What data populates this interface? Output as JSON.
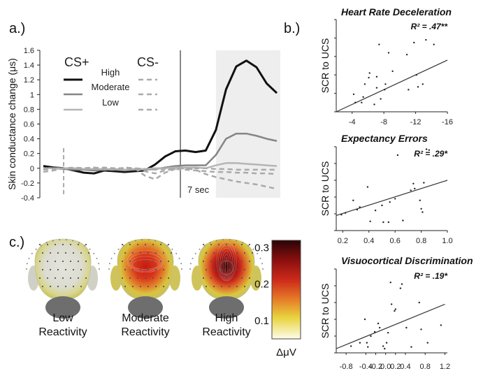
{
  "labels": {
    "a": "a.)",
    "b": "b.)",
    "c": "c.)"
  },
  "chart_data": [
    {
      "type": "line",
      "title": "",
      "ylabel": "Skin conductance change (μs)",
      "xlabel": "",
      "ylim": [
        -0.4,
        1.6
      ],
      "yticks": [
        "1.6",
        "1.4",
        "1.2",
        "1",
        "0.8",
        "0.6",
        "0.4",
        "0.2",
        "0",
        "-0.2",
        "-0.4"
      ],
      "x": [
        0,
        1,
        2,
        3,
        4,
        5,
        6,
        7,
        8,
        9,
        10,
        11,
        12,
        13,
        14,
        15,
        16,
        17,
        18,
        19,
        20,
        21,
        22,
        23
      ],
      "onset_index": 2,
      "marker_index": 13.5,
      "marker_label": "7 sec",
      "shade_from_index": 17,
      "legend": {
        "cs_plus": "CS+",
        "cs_minus": "CS-",
        "high": "High",
        "moderate": "Moderate",
        "low": "Low"
      },
      "series": [
        {
          "name": "CS+ High",
          "color": "#111111",
          "dash": "",
          "values": [
            0.03,
            0.01,
            0.0,
            -0.03,
            -0.06,
            -0.07,
            -0.03,
            -0.04,
            -0.05,
            -0.04,
            -0.03,
            0.05,
            0.16,
            0.23,
            0.24,
            0.22,
            0.24,
            0.52,
            1.07,
            1.38,
            1.46,
            1.37,
            1.15,
            1.02
          ]
        },
        {
          "name": "CS+ Moderate",
          "color": "#858585",
          "dash": "",
          "values": [
            0.0,
            0.0,
            -0.01,
            -0.02,
            -0.02,
            -0.03,
            -0.02,
            -0.02,
            -0.03,
            -0.02,
            -0.02,
            -0.01,
            0.01,
            0.03,
            0.04,
            0.04,
            0.04,
            0.18,
            0.4,
            0.47,
            0.47,
            0.44,
            0.4,
            0.37
          ]
        },
        {
          "name": "CS+ Low",
          "color": "#b5b5b5",
          "dash": "",
          "values": [
            0.0,
            0.0,
            0.0,
            0.0,
            -0.01,
            -0.01,
            -0.01,
            -0.01,
            -0.02,
            -0.01,
            -0.01,
            0.0,
            0.0,
            0.01,
            0.01,
            0.01,
            0.0,
            0.04,
            0.07,
            0.07,
            0.06,
            0.05,
            0.04,
            0.03
          ]
        },
        {
          "name": "CS- High",
          "color": "#aaaaaa",
          "dash": "7,5",
          "values": [
            -0.05,
            -0.03,
            0.0,
            0.01,
            0.0,
            0.01,
            -0.02,
            -0.02,
            0.01,
            0.0,
            -0.1,
            -0.15,
            -0.06,
            -0.01,
            0.0,
            -0.02,
            -0.08,
            -0.12,
            -0.15,
            -0.18,
            -0.2,
            -0.22,
            -0.25,
            -0.28
          ]
        },
        {
          "name": "CS- Moderate",
          "color": "#aaaaaa",
          "dash": "7,5",
          "values": [
            -0.02,
            -0.01,
            0.0,
            0.0,
            0.0,
            0.01,
            0.0,
            -0.01,
            0.0,
            -0.01,
            -0.04,
            -0.07,
            -0.03,
            -0.01,
            -0.02,
            -0.03,
            -0.04,
            -0.05,
            -0.05,
            -0.06,
            -0.06,
            -0.07,
            -0.07,
            -0.08
          ]
        },
        {
          "name": "CS- Low",
          "color": "#aaaaaa",
          "dash": "7,5",
          "values": [
            0.0,
            0.0,
            0.0,
            0.0,
            0.0,
            0.0,
            0.01,
            0.0,
            0.0,
            0.0,
            -0.01,
            -0.02,
            -0.01,
            0.0,
            0.0,
            0.0,
            0.0,
            -0.01,
            -0.01,
            -0.02,
            -0.02,
            -0.02,
            -0.02,
            -0.02
          ]
        }
      ]
    },
    {
      "type": "scatter",
      "title": "Heart Rate Deceleration",
      "r2": "R² = .47**",
      "xlabel": "",
      "ylabel": "SCR to UCS",
      "xlim": [
        -2,
        -16
      ],
      "xticks": [
        "-4",
        "-8",
        "-12",
        "-16"
      ],
      "xtick_values": [
        -4,
        -8,
        -12,
        -16
      ],
      "ylim": [
        0,
        1
      ],
      "fit": [
        [
          -2,
          0.0
        ],
        [
          -16,
          0.56
        ]
      ],
      "points": [
        [
          -5.6,
          0.3
        ],
        [
          -6.8,
          0.08
        ],
        [
          -7.4,
          0.73
        ],
        [
          -8.6,
          0.64
        ],
        [
          -6.2,
          0.42
        ],
        [
          -7.1,
          0.38
        ],
        [
          -5.2,
          0.1
        ],
        [
          -4.4,
          0.1
        ],
        [
          -5.4,
          0.16
        ],
        [
          -7.6,
          0.14
        ],
        [
          -8.1,
          0.24
        ],
        [
          -7.1,
          0.26
        ],
        [
          -8.2,
          0.3
        ],
        [
          -12.3,
          0.27
        ],
        [
          -11.1,
          0.24
        ],
        [
          -12.9,
          0.3
        ],
        [
          -10.9,
          0.62
        ],
        [
          -12.1,
          0.4
        ],
        [
          -13.3,
          0.78
        ],
        [
          -11.8,
          0.75
        ],
        [
          -14.3,
          0.73
        ],
        [
          -9.1,
          0.44
        ],
        [
          -4.2,
          0.19
        ],
        [
          -6.1,
          0.37
        ]
      ]
    },
    {
      "type": "scatter",
      "title": "Expectancy Errors",
      "r2": "R² = .29*",
      "xlabel": "",
      "ylabel": "SCR to UCS",
      "xlim": [
        0.15,
        1.0
      ],
      "xticks": [
        "0.2",
        "0.4",
        "0.6",
        "0.8",
        "1.0"
      ],
      "xtick_values": [
        0.2,
        0.4,
        0.6,
        0.8,
        1.0
      ],
      "ylim": [
        0,
        1
      ],
      "fit": [
        [
          0.15,
          0.18
        ],
        [
          1.0,
          0.6
        ]
      ],
      "points": [
        [
          0.19,
          0.19
        ],
        [
          0.22,
          0.21
        ],
        [
          0.28,
          0.36
        ],
        [
          0.31,
          0.25
        ],
        [
          0.33,
          0.28
        ],
        [
          0.39,
          0.52
        ],
        [
          0.41,
          0.11
        ],
        [
          0.45,
          0.24
        ],
        [
          0.5,
          0.3
        ],
        [
          0.51,
          0.1
        ],
        [
          0.55,
          0.1
        ],
        [
          0.56,
          0.34
        ],
        [
          0.6,
          0.38
        ],
        [
          0.62,
          0.9
        ],
        [
          0.66,
          0.12
        ],
        [
          0.72,
          0.48
        ],
        [
          0.74,
          0.56
        ],
        [
          0.75,
          0.5
        ],
        [
          0.79,
          0.36
        ],
        [
          0.8,
          0.26
        ],
        [
          0.82,
          0.57
        ],
        [
          0.84,
          0.97
        ],
        [
          0.86,
          0.96
        ],
        [
          0.81,
          0.22
        ]
      ]
    },
    {
      "type": "scatter",
      "title": "Visuocortical Discrimination",
      "r2": "R² = .19*",
      "xlabel": "",
      "ylabel": "SCR to UCS",
      "xlim": [
        -1.0,
        1.25
      ],
      "xticks": [
        "-0.8",
        "-0.4",
        "-0.2",
        "0.0",
        "0.2",
        "0.4",
        "0.8",
        "1.2"
      ],
      "xtick_values": [
        -0.8,
        -0.4,
        -0.2,
        0.0,
        0.2,
        0.4,
        0.8,
        1.2
      ],
      "ylim": [
        0,
        1
      ],
      "fit": [
        [
          -1.0,
          0.05
        ],
        [
          1.2,
          0.58
        ]
      ],
      "points": [
        [
          -0.7,
          0.08
        ],
        [
          -0.52,
          0.12
        ],
        [
          -0.42,
          0.4
        ],
        [
          -0.38,
          0.12
        ],
        [
          -0.36,
          0.07
        ],
        [
          -0.3,
          0.2
        ],
        [
          -0.22,
          0.25
        ],
        [
          -0.15,
          0.35
        ],
        [
          -0.12,
          0.3
        ],
        [
          -0.05,
          0.08
        ],
        [
          -0.02,
          0.05
        ],
        [
          0.02,
          0.12
        ],
        [
          0.05,
          0.24
        ],
        [
          0.1,
          0.84
        ],
        [
          0.12,
          0.58
        ],
        [
          0.18,
          0.5
        ],
        [
          0.2,
          0.52
        ],
        [
          0.3,
          0.77
        ],
        [
          0.33,
          0.82
        ],
        [
          0.42,
          0.3
        ],
        [
          0.52,
          0.07
        ],
        [
          0.6,
          0.92
        ],
        [
          0.68,
          0.6
        ],
        [
          0.72,
          0.28
        ],
        [
          0.85,
          0.12
        ],
        [
          1.12,
          0.33
        ]
      ]
    }
  ],
  "heads": [
    {
      "line1": "Low",
      "line2": "Reactivity"
    },
    {
      "line1": "Moderate",
      "line2": "Reactivity"
    },
    {
      "line1": "High",
      "line2": "Reactivity"
    }
  ],
  "colorbar": {
    "ticks": [
      "0.3",
      "0.2",
      "0.1"
    ],
    "tick_values": [
      0.3,
      0.2,
      0.1
    ],
    "range": [
      0.05,
      0.32
    ],
    "unit": "ΔμV"
  }
}
